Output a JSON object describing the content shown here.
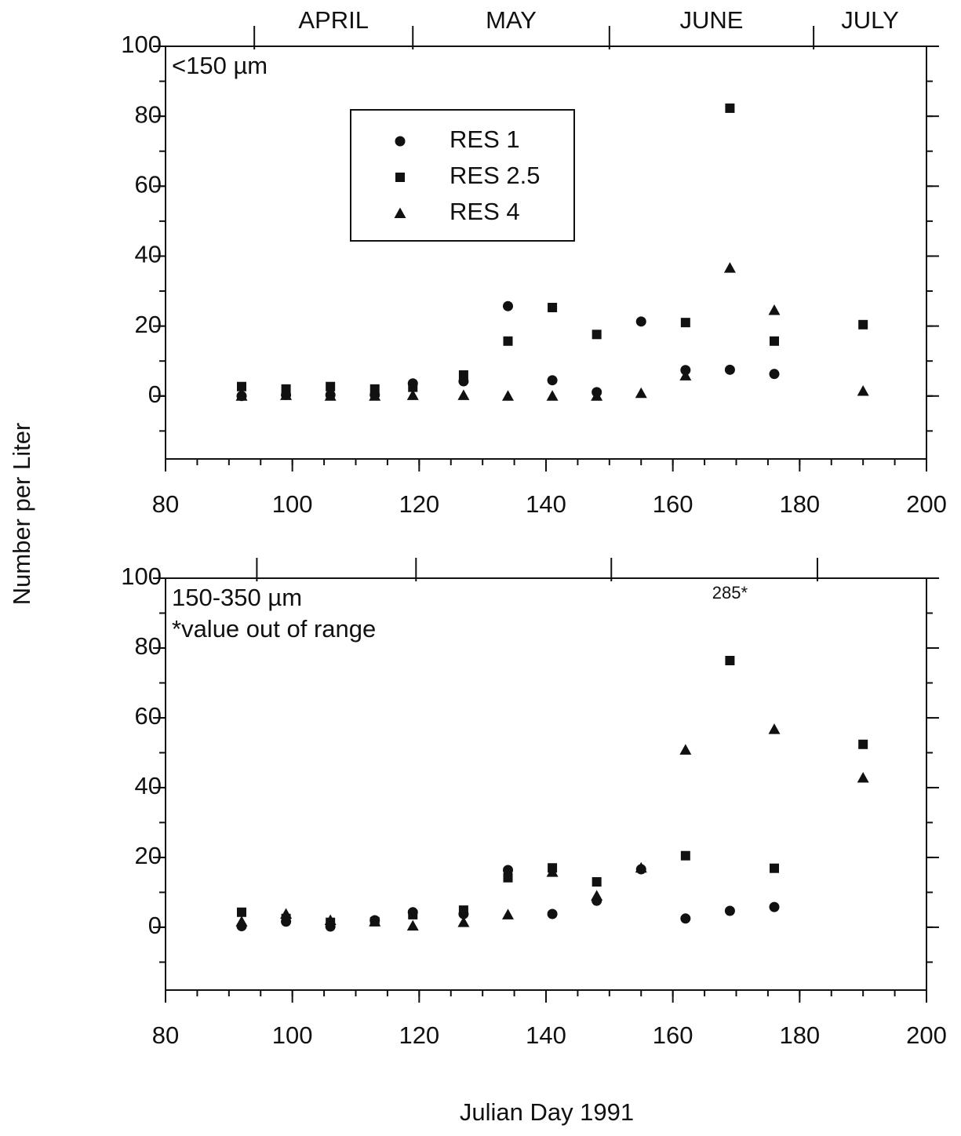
{
  "ylabel": "Number per Liter",
  "xlabel": "Julian Day 1991",
  "chart_data": [
    {
      "type": "scatter",
      "annotations": [
        "<150 µm"
      ],
      "months": [
        "APRIL",
        "MAY",
        "JUNE",
        "JULY"
      ],
      "month_ticks": [
        94,
        119,
        150,
        182.2
      ],
      "x": [
        92,
        99,
        106,
        113,
        119,
        127,
        134,
        141,
        148,
        155,
        162,
        169,
        176,
        190
      ],
      "series": [
        {
          "name": "RES 1",
          "marker": "circle",
          "color": "#111111",
          "values": [
            0,
            0.3,
            0.3,
            0.3,
            3.6,
            4.2,
            25.7,
            4.5,
            1.1,
            21.3,
            7.4,
            7.5,
            6.3,
            null
          ]
        },
        {
          "name": "RES 2.5",
          "marker": "square",
          "color": "#111111",
          "values": [
            2.7,
            2,
            2.7,
            2,
            2.5,
            6,
            15.7,
            25.3,
            17.6,
            null,
            21,
            82.3,
            15.7,
            20.4
          ]
        },
        {
          "name": "RES 4",
          "marker": "triangle",
          "color": "#111111",
          "values": [
            0,
            0.2,
            0,
            0,
            0.2,
            0.2,
            0,
            0,
            0,
            0.8,
            5.8,
            36.6,
            24.5,
            1.4
          ]
        }
      ],
      "xlim": [
        80,
        200
      ],
      "xticks": [
        80,
        100,
        120,
        140,
        160,
        180,
        200
      ],
      "ylim": [
        -18,
        100
      ],
      "yticks": [
        0,
        20,
        40,
        60,
        80,
        100
      ],
      "legend": "upper left"
    },
    {
      "type": "scatter",
      "annotations": [
        "150-350 µm",
        "*value out of range"
      ],
      "month_ticks": [
        94.4,
        119.5,
        150.3,
        182.8
      ],
      "x": [
        92,
        99,
        106,
        113,
        119,
        127,
        134,
        141,
        148,
        155,
        162,
        169,
        176,
        190
      ],
      "series": [
        {
          "name": "RES 1",
          "marker": "circle",
          "color": "#111111",
          "values": [
            0.3,
            1.6,
            0.2,
            2,
            4.3,
            3.8,
            16.4,
            3.8,
            7.6,
            16.6,
            2.5,
            4.7,
            5.8,
            null
          ]
        },
        {
          "name": "RES 2.5",
          "marker": "square",
          "color": "#111111",
          "values": [
            4.3,
            2.5,
            1.4,
            1.6,
            3.6,
            4.9,
            14.2,
            17,
            13,
            null,
            20.5,
            76.4,
            16.9,
            52.4
          ]
        },
        {
          "name": "RES 4",
          "marker": "triangle",
          "color": "#111111",
          "values": [
            1.6,
            3.8,
            2,
            1.6,
            0.4,
            1.4,
            3.6,
            15.8,
            9,
            17,
            50.8,
            285,
            56.7,
            42.8
          ],
          "value_labels": [
            null,
            null,
            null,
            null,
            null,
            null,
            null,
            null,
            null,
            null,
            null,
            "285*",
            null,
            null
          ]
        }
      ],
      "xlim": [
        80,
        200
      ],
      "xticks": [
        80,
        100,
        120,
        140,
        160,
        180,
        200
      ],
      "ylim": [
        -18,
        100
      ],
      "yticks": [
        0,
        20,
        40,
        60,
        80,
        100
      ]
    }
  ]
}
